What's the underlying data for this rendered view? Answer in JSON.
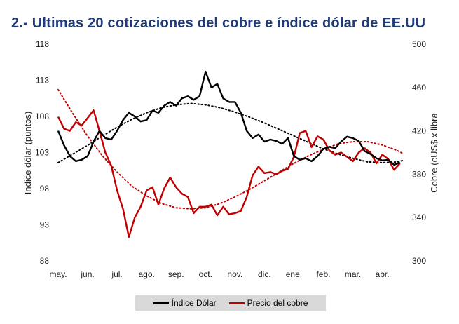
{
  "title": "2.- Ultimas 20 cotizaciones del cobre e índice dólar de EE.UU",
  "chart_data": {
    "type": "line",
    "x_categories": [
      "may.",
      "jun.",
      "jul.",
      "ago.",
      "sep.",
      "oct.",
      "nov.",
      "dic.",
      "ene.",
      "feb.",
      "mar.",
      "abr."
    ],
    "y_left": {
      "label": "Indice dólar (puntos)",
      "ticks": [
        88,
        93,
        98,
        103,
        108,
        113,
        118
      ],
      "range": [
        88,
        118
      ]
    },
    "y_right": {
      "label": "Cobre (cUS$ x libra",
      "ticks": [
        300,
        340,
        380,
        420,
        460,
        500
      ],
      "range": [
        300,
        500
      ]
    },
    "grid": false,
    "legend_position": "bottom",
    "series": [
      {
        "name": "Índice Dólar",
        "axis": "left",
        "color": "#000000",
        "x": [
          0,
          0.2,
          0.4,
          0.6,
          0.8,
          1.0,
          1.2,
          1.4,
          1.6,
          1.8,
          2.0,
          2.2,
          2.4,
          2.6,
          2.8,
          3.0,
          3.2,
          3.4,
          3.6,
          3.8,
          4.0,
          4.2,
          4.4,
          4.6,
          4.8,
          5.0,
          5.2,
          5.4,
          5.6,
          5.8,
          6.0,
          6.2,
          6.4,
          6.6,
          6.8,
          7.0,
          7.2,
          7.4,
          7.6,
          7.8,
          8.0,
          8.2,
          8.4,
          8.6,
          8.8,
          9.0,
          9.2,
          9.4,
          9.6,
          9.8,
          10.0,
          10.2,
          10.4,
          10.6,
          10.8,
          11.0,
          11.2,
          11.4,
          11.6
        ],
        "values": [
          106,
          104,
          102.5,
          101.8,
          102,
          102.5,
          104.5,
          106,
          105,
          104.8,
          106,
          107.5,
          108.5,
          108,
          107.3,
          107.5,
          108.8,
          108.5,
          109.5,
          110,
          109.5,
          110.5,
          110.8,
          110.3,
          110.8,
          114.2,
          112,
          112.5,
          110.5,
          110,
          110,
          108.5,
          106,
          105,
          105.5,
          104.5,
          104.8,
          104.6,
          104.2,
          105,
          102.5,
          102,
          102.2,
          101.8,
          102.5,
          103.5,
          103.8,
          103.6,
          104.5,
          105.2,
          105,
          104.6,
          103.2,
          102.8,
          102.2,
          101.9,
          102,
          101.3,
          101.6
        ]
      },
      {
        "name": "Precio del cobre",
        "axis": "right",
        "color": "#c00000",
        "x": [
          0,
          0.2,
          0.4,
          0.6,
          0.8,
          1.0,
          1.2,
          1.4,
          1.6,
          1.8,
          2.0,
          2.2,
          2.4,
          2.6,
          2.8,
          3.0,
          3.2,
          3.4,
          3.6,
          3.8,
          4.0,
          4.2,
          4.4,
          4.6,
          4.8,
          5.0,
          5.2,
          5.4,
          5.6,
          5.8,
          6.0,
          6.2,
          6.4,
          6.6,
          6.8,
          7.0,
          7.2,
          7.4,
          7.6,
          7.8,
          8.0,
          8.2,
          8.4,
          8.6,
          8.8,
          9.0,
          9.2,
          9.4,
          9.6,
          9.8,
          10.0,
          10.2,
          10.4,
          10.6,
          10.8,
          11.0,
          11.2,
          11.4,
          11.6
        ],
        "values": [
          433,
          422,
          420,
          428,
          425,
          432,
          439,
          420,
          400,
          388,
          365,
          348,
          322,
          340,
          350,
          365,
          368,
          352,
          367,
          377,
          368,
          362,
          359,
          344,
          350,
          350,
          352,
          342,
          350,
          343,
          344,
          346,
          359,
          379,
          387,
          381,
          382,
          380,
          383,
          385,
          396,
          418,
          420,
          405,
          415,
          412,
          402,
          398,
          400,
          396,
          392,
          400,
          404,
          400,
          390,
          398,
          394,
          384,
          390
        ]
      }
    ],
    "trendlines": [
      {
        "series": "Índice Dólar",
        "axis": "left",
        "style": "dotted",
        "color": "#000000",
        "x": [
          0,
          0.5,
          1,
          1.5,
          2,
          2.5,
          3,
          3.5,
          4,
          4.5,
          5,
          5.5,
          6,
          6.5,
          7,
          7.5,
          8,
          8.5,
          9,
          9.5,
          10,
          10.5,
          11,
          11.5,
          11.7
        ],
        "values": [
          101.6,
          102.8,
          104,
          105.3,
          106.5,
          107.6,
          108.5,
          109.2,
          109.6,
          109.8,
          109.6,
          109.2,
          108.6,
          107.9,
          107.1,
          106.2,
          105.3,
          104.4,
          103.5,
          102.8,
          102.2,
          101.7,
          101.6,
          101.7,
          101.9
        ]
      },
      {
        "series": "Precio del cobre",
        "axis": "right",
        "style": "dotted",
        "color": "#c00000",
        "x": [
          0,
          0.5,
          1,
          1.5,
          2,
          2.5,
          3,
          3.5,
          4,
          4.5,
          5,
          5.5,
          6,
          6.5,
          7,
          7.5,
          8,
          8.5,
          9,
          9.5,
          10,
          10.5,
          11,
          11.5,
          11.7
        ],
        "values": [
          458,
          436,
          415,
          397,
          382,
          369,
          360,
          353,
          349,
          348,
          349,
          353,
          359,
          366,
          374,
          382,
          390,
          397,
          403,
          408,
          410,
          410,
          407,
          402,
          399
        ]
      }
    ]
  }
}
